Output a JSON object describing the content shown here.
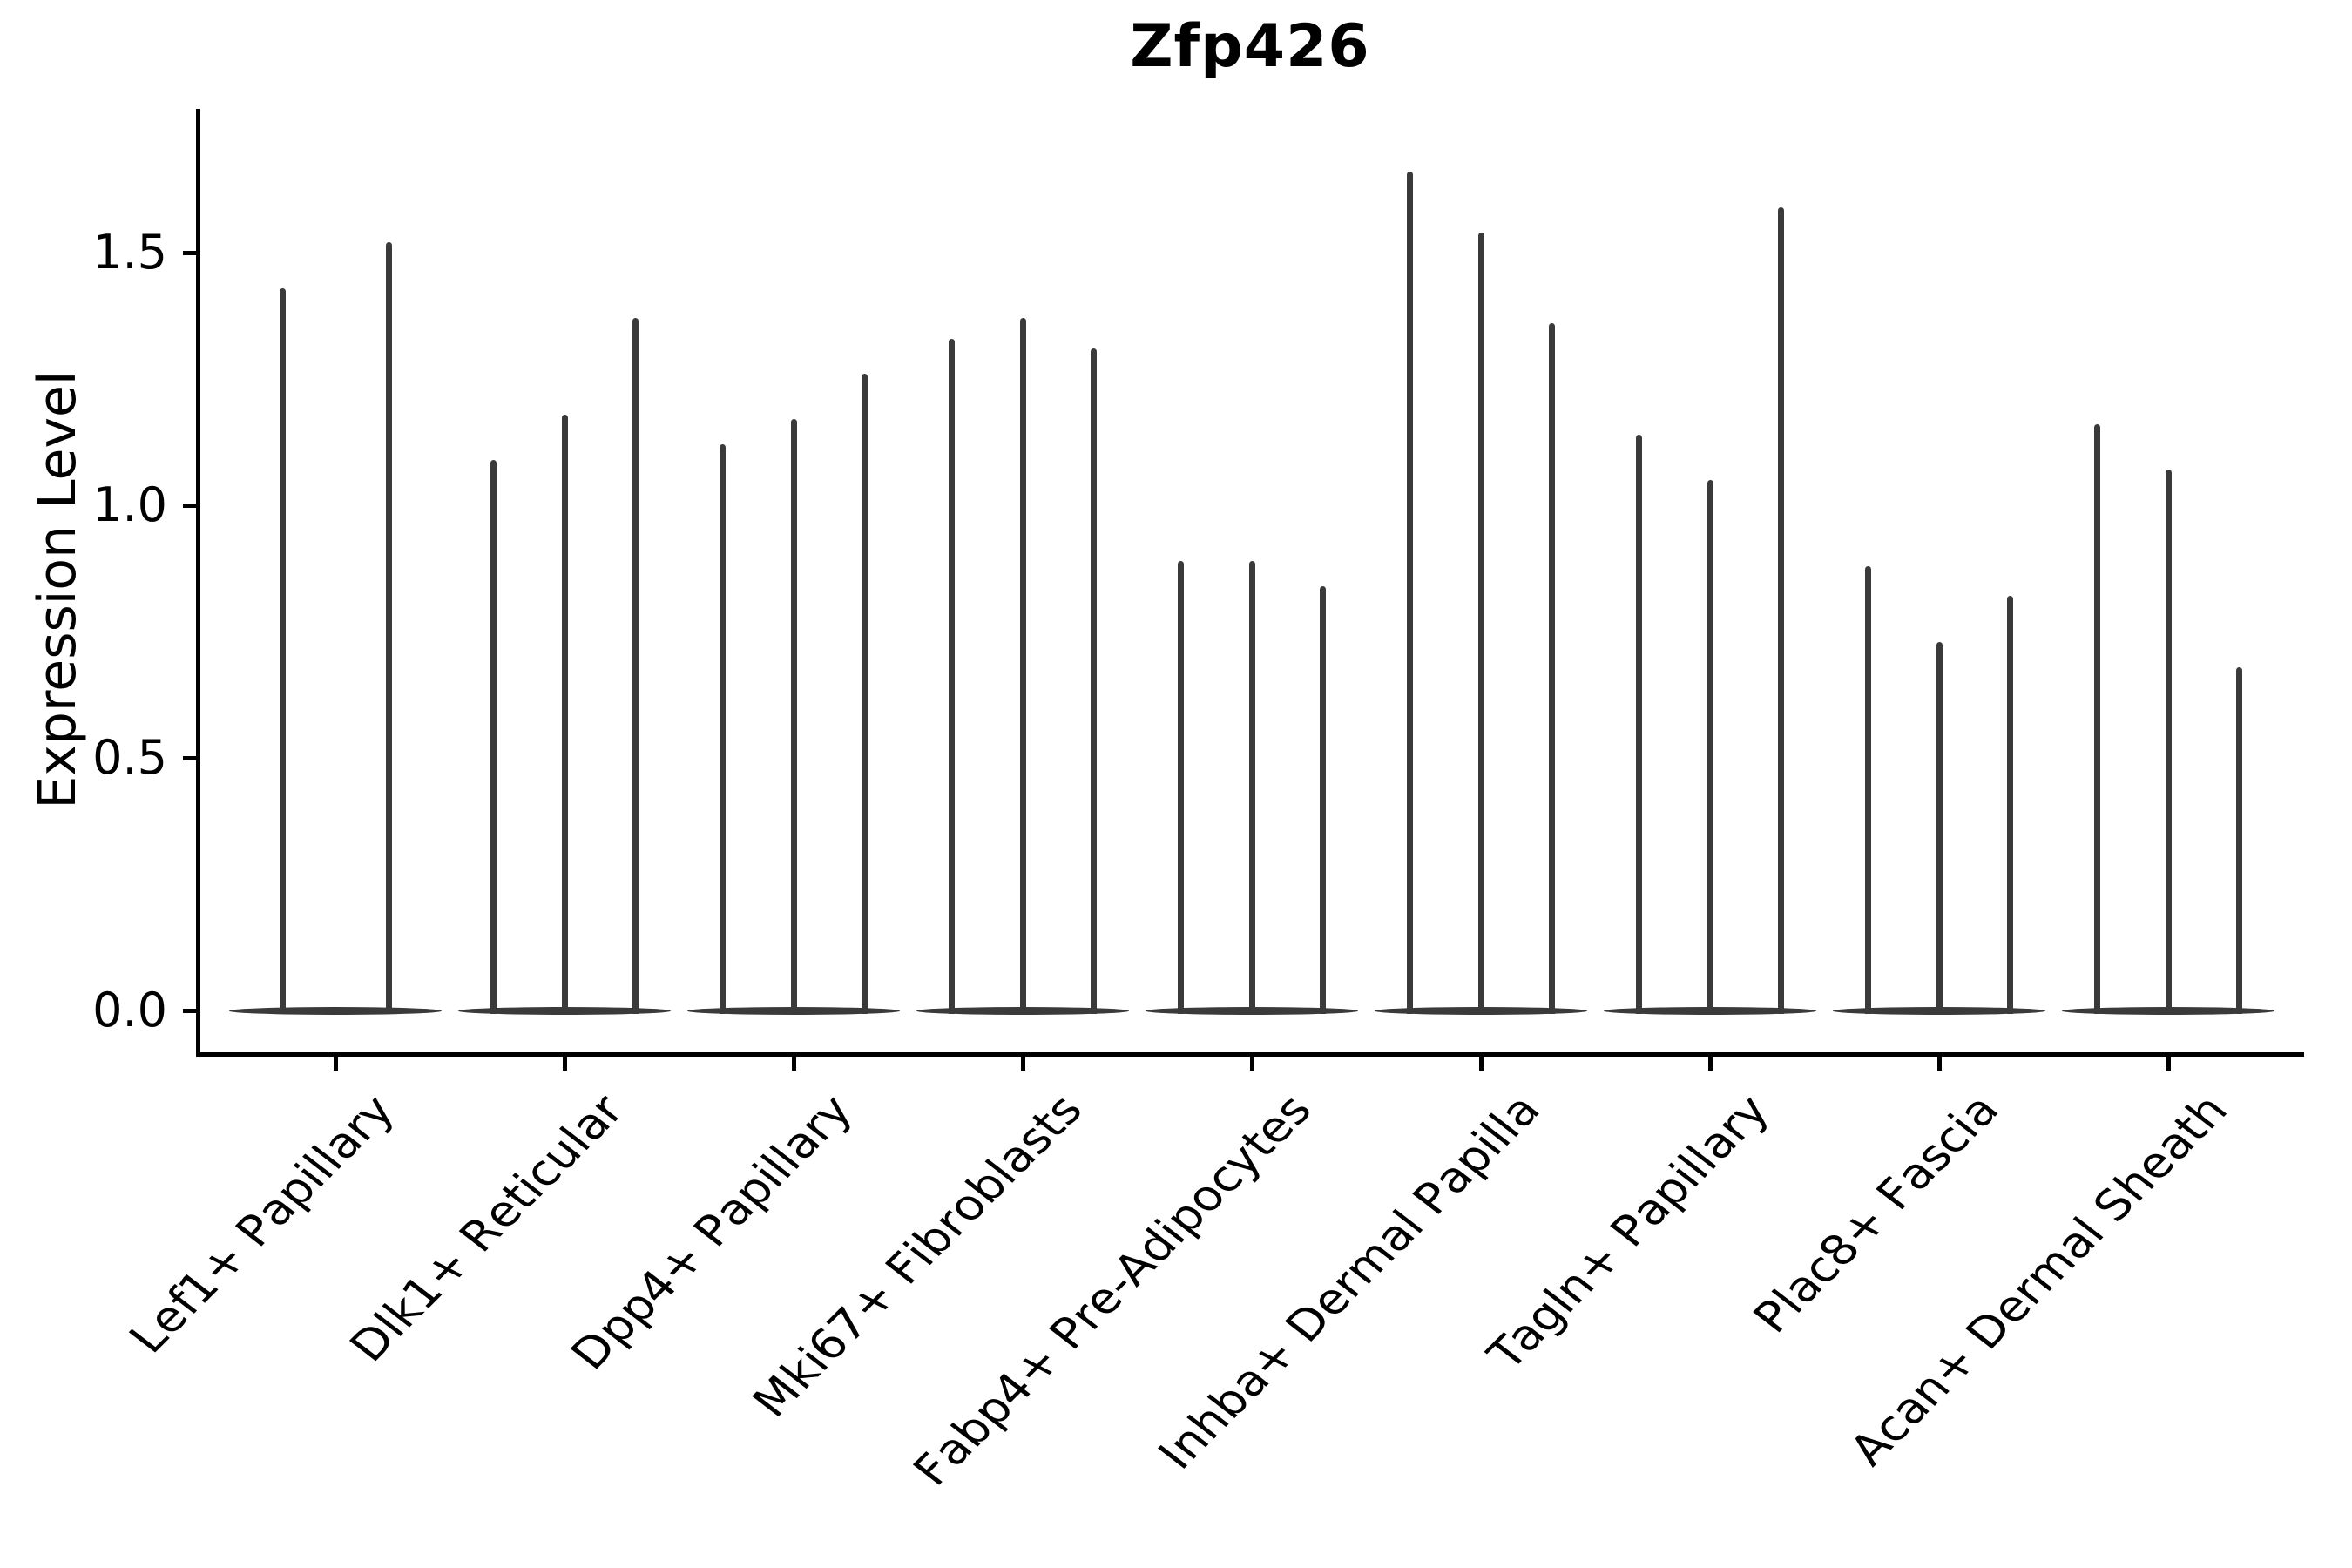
{
  "chart_data": {
    "type": "violin",
    "title": "Zfp426",
    "xlabel": "",
    "ylabel": "Expression Level",
    "y_ticks": [
      {
        "value": 0.0,
        "label": "0.0"
      },
      {
        "value": 0.5,
        "label": "0.5"
      },
      {
        "value": 1.0,
        "label": "1.0"
      },
      {
        "value": 1.5,
        "label": "1.5"
      }
    ],
    "ylim": [
      -0.09,
      1.78
    ],
    "grid": false,
    "legend": "none",
    "x_tick_rotation": 45,
    "description": "Each category shows thin violins (density spikes); bulk of cells at expression 0 forms a flat lens on the baseline; spike_heights are the maximum expression level reached by each violin",
    "categories": [
      "Lef1+ Papillary",
      "Dlk1+ Reticular",
      "Dpp4+ Papillary",
      "Mki67+ Fibroblasts",
      "Fabp4+ Pre-Adipocytes",
      "Inhba+ Dermal Papilla",
      "Tagln+ Papillary",
      "Plac8+ Fascia",
      "Acan+ Dermal Sheath"
    ],
    "violins": [
      {
        "category": "Lef1+ Papillary",
        "spike_heights": [
          1.43,
          1.52
        ]
      },
      {
        "category": "Dlk1+ Reticular",
        "spike_heights": [
          1.09,
          1.18,
          1.37
        ]
      },
      {
        "category": "Dpp4+ Papillary",
        "spike_heights": [
          1.12,
          1.17,
          1.26
        ]
      },
      {
        "category": "Mki67+ Fibroblasts",
        "spike_heights": [
          1.33,
          1.37,
          1.31
        ]
      },
      {
        "category": "Fabp4+ Pre-Adipocytes",
        "spike_heights": [
          0.89,
          0.89,
          0.84
        ]
      },
      {
        "category": "Inhba+ Dermal Papilla",
        "spike_heights": [
          1.66,
          1.54,
          1.36
        ]
      },
      {
        "category": "Tagln+ Papillary",
        "spike_heights": [
          1.14,
          1.05,
          1.59
        ]
      },
      {
        "category": "Plac8+ Fascia",
        "spike_heights": [
          0.88,
          0.73,
          0.82
        ]
      },
      {
        "category": "Acan+ Dermal Sheath",
        "spike_heights": [
          1.16,
          1.07,
          0.68
        ]
      }
    ],
    "colors": {
      "violin": "#3a3a3a",
      "axis": "#000000",
      "background": "#ffffff"
    }
  }
}
